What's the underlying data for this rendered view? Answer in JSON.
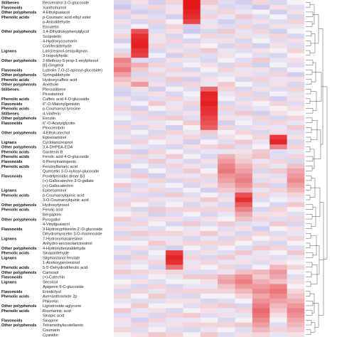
{
  "chart_data": {
    "type": "heatmap",
    "scale": {
      "low": "#5b5bd6",
      "mid": "#f4f0f6",
      "high": "#e31a1c"
    },
    "n_columns": 11,
    "rows": [
      {
        "group": "Stilbenes",
        "name": "Resveratrol 3-O-glucoside",
        "v": [
          -0.3,
          0.1,
          -0.4,
          0.2,
          3.0,
          0.3,
          -0.2,
          -0.4,
          0.2,
          -0.3,
          0.0
        ]
      },
      {
        "group": "Flavonoids",
        "name": "Xanthohumol",
        "v": [
          -0.5,
          -0.2,
          0.2,
          -0.1,
          3.0,
          0.1,
          -0.3,
          -0.2,
          -0.5,
          0.1,
          -0.2
        ]
      },
      {
        "group": "Other polyphenols",
        "name": "4-Ethylguaiacol",
        "v": [
          0.2,
          -0.4,
          -0.3,
          0.1,
          2.8,
          -0.2,
          0.2,
          -0.1,
          0.0,
          -0.4,
          0.1
        ]
      },
      {
        "group": "Phenolic acids",
        "name": "p-Coumaric acid ethyl ester",
        "v": [
          -0.3,
          0.1,
          -0.2,
          -0.4,
          2.6,
          0.2,
          -0.1,
          0.3,
          -0.2,
          0.0,
          -0.3
        ]
      },
      {
        "group": "",
        "name": "p-Anisaldehyde",
        "v": [
          0.1,
          -0.3,
          0.2,
          0.0,
          2.2,
          -0.1,
          -0.4,
          -0.2,
          0.1,
          -0.2,
          0.2
        ]
      },
      {
        "group": "",
        "name": "Esculetin",
        "v": [
          -0.2,
          0.0,
          -0.3,
          0.2,
          -0.4,
          0.1,
          -0.2,
          0.2,
          -0.3,
          0.1,
          -0.1
        ]
      },
      {
        "group": "Other polyphenols",
        "name": "3,4-Dihydroxyphenylglycol",
        "v": [
          -0.1,
          2.0,
          -0.2,
          0.1,
          -0.5,
          -0.3,
          0.3,
          -0.1,
          0.2,
          -0.4,
          0.0
        ]
      },
      {
        "group": "",
        "name": "Scopoletin",
        "v": [
          0.2,
          2.6,
          0.1,
          -0.3,
          0.0,
          0.2,
          -0.2,
          0.1,
          -0.1,
          0.2,
          -0.3
        ]
      },
      {
        "group": "",
        "name": "4-Hydroxycoumarin",
        "v": [
          -0.4,
          2.8,
          -0.1,
          0.2,
          -0.3,
          -0.1,
          0.1,
          -0.3,
          0.0,
          -0.2,
          0.1
        ]
      },
      {
        "group": "",
        "name": "Coniferaldehyde",
        "v": [
          0.0,
          2.9,
          0.2,
          -0.2,
          0.1,
          0.0,
          -0.3,
          0.2,
          -0.4,
          0.1,
          -0.2
        ]
      },
      {
        "group": "Lignans",
        "name": "Lariciresinol-sesquilignan",
        "v": [
          -0.2,
          2.5,
          -0.3,
          0.1,
          -0.2,
          0.3,
          -0.1,
          -0.2,
          0.1,
          0.0,
          0.2
        ]
      },
      {
        "group": "",
        "name": "3-Isopolyhydic",
        "v": [
          0.3,
          2.3,
          0.0,
          -0.4,
          0.2,
          -0.2,
          0.1,
          0.0,
          -0.2,
          -0.3,
          0.0
        ]
      },
      {
        "group": "Other polyphenols",
        "name": "2-Methoxy-5-prop-1-enylphenol",
        "v": [
          1.2,
          -0.2,
          -0.3,
          0.1,
          -0.1,
          -0.3,
          0.0,
          -0.2,
          0.3,
          -0.1,
          0.1
        ]
      },
      {
        "group": "",
        "name": "[6]-Gingerol",
        "v": [
          1.0,
          0.6,
          0.2,
          -0.2,
          0.0,
          0.1,
          -0.3,
          0.2,
          -0.4,
          0.0,
          -0.2
        ]
      },
      {
        "group": "Flavonoids",
        "name": "Luteolin 7-O-(2-apiosyl-glucoside)",
        "v": [
          1.4,
          0.3,
          -0.1,
          0.2,
          -0.3,
          0.0,
          0.2,
          -0.1,
          0.1,
          -0.3,
          0.0
        ]
      },
      {
        "group": "Other polyphenols",
        "name": "Syringaldehyde",
        "v": [
          0.8,
          -0.3,
          0.2,
          -0.1,
          0.1,
          -0.2,
          -0.1,
          0.1,
          -0.2,
          0.2,
          -0.4
        ]
      },
      {
        "group": "Phenolic acids",
        "name": "Hydroxycaffeic acid",
        "v": [
          0.4,
          0.2,
          -0.2,
          0.3,
          -0.4,
          0.1,
          0.0,
          -0.3,
          0.2,
          -0.1,
          0.1
        ]
      },
      {
        "group": "Other polyphenols",
        "name": "Anethole",
        "v": [
          0.2,
          0.9,
          0.1,
          -0.3,
          0.2,
          -0.1,
          0.3,
          0.0,
          -0.2,
          0.1,
          -0.3
        ]
      },
      {
        "group": "Stilbenes",
        "name": "Pterostilbene",
        "v": [
          -0.3,
          0.1,
          -0.4,
          0.0,
          -0.2,
          1.6,
          0.2,
          -0.3,
          0.1,
          -0.2,
          0.2
        ]
      },
      {
        "group": "",
        "name": "Piceatannol",
        "v": [
          -0.4,
          -0.2,
          0.1,
          -0.3,
          0.0,
          2.8,
          -0.1,
          0.2,
          -0.3,
          0.0,
          -0.1
        ]
      },
      {
        "group": "Phenolic acids",
        "name": "Caffeic acid 4-O-glucoside",
        "v": [
          0.1,
          -0.3,
          -0.2,
          0.2,
          -0.1,
          2.7,
          0.0,
          -0.2,
          0.2,
          -0.4,
          0.1
        ]
      },
      {
        "group": "Flavonoids",
        "name": "6''-O-Malonylgenistin",
        "v": [
          -0.2,
          0.0,
          0.3,
          -0.1,
          0.2,
          2.9,
          -0.3,
          0.1,
          0.0,
          0.2,
          -0.2
        ]
      },
      {
        "group": "Phenolic acids",
        "name": "p-Coumaroyl tyrosine",
        "v": [
          0.2,
          -0.4,
          0.0,
          0.1,
          -0.3,
          2.6,
          0.2,
          -0.2,
          -0.1,
          0.0,
          0.1
        ]
      },
      {
        "group": "Stilbenes",
        "name": "d-Viniferin",
        "v": [
          -0.1,
          0.2,
          -0.3,
          -0.2,
          0.1,
          2.5,
          -0.2,
          0.3,
          -0.4,
          0.1,
          0.0
        ]
      },
      {
        "group": "Other polyphenols",
        "name": "Esculin",
        "v": [
          0.0,
          -0.2,
          0.2,
          0.3,
          -0.2,
          2.2,
          0.1,
          -0.1,
          0.2,
          -0.3,
          0.2
        ]
      },
      {
        "group": "Flavonoids",
        "name": "6''-O-Acetylglycitin",
        "v": [
          -0.3,
          0.1,
          -0.1,
          0.0,
          0.3,
          2.0,
          -0.4,
          0.0,
          -0.2,
          0.2,
          -0.1
        ]
      },
      {
        "group": "",
        "name": "Pinocembrin",
        "v": [
          0.2,
          -0.3,
          0.1,
          -0.4,
          0.0,
          1.8,
          0.2,
          -0.2,
          0.1,
          -0.1,
          0.3
        ]
      },
      {
        "group": "Other polyphenols",
        "name": "4-Ethylcatechol",
        "v": [
          -0.2,
          0.0,
          -0.3,
          0.2,
          -0.1,
          0.3,
          0.0,
          0.2,
          -0.3,
          0.1,
          -0.2
        ]
      },
      {
        "group": "",
        "name": "Episesaminol",
        "v": [
          0.1,
          -0.2,
          0.2,
          -0.1,
          0.2,
          -0.3,
          0.1,
          0.0,
          0.2,
          2.4,
          0.1
        ]
      },
      {
        "group": "Lignans",
        "name": "Cyclolariciresinol",
        "v": [
          -0.3,
          0.2,
          0.0,
          0.1,
          -0.4,
          0.0,
          -0.2,
          0.3,
          -0.1,
          2.8,
          -0.3
        ]
      },
      {
        "group": "Other polyphenols",
        "name": "3,4-DHPEA-EDA",
        "v": [
          0.0,
          -0.1,
          -0.2,
          -0.3,
          0.1,
          0.2,
          0.3,
          -0.2,
          0.0,
          1.2,
          0.2
        ]
      },
      {
        "group": "Phenolic acids",
        "name": "Gardenin B",
        "v": [
          0.3,
          -0.4,
          0.2,
          0.0,
          -0.2,
          -0.1,
          -0.1,
          0.1,
          0.3,
          -0.2,
          -0.1
        ]
      },
      {
        "group": "Phenolic acids",
        "name": "Ferulic acid 4-O-glucoside",
        "v": [
          -0.1,
          0.2,
          -0.1,
          0.3,
          0.0,
          -0.3,
          0.6,
          0.2,
          0.4,
          -0.2,
          0.2
        ]
      },
      {
        "group": "Flavonoids",
        "name": "6-Prenylnaringenin",
        "v": [
          0.2,
          -0.2,
          0.3,
          -0.1,
          -0.3,
          0.1,
          0.9,
          0.3,
          -0.1,
          0.2,
          -0.3
        ]
      },
      {
        "group": "Phenolic acids",
        "name": "Feruloyltartaric acid",
        "v": [
          -0.4,
          0.0,
          -0.2,
          0.2,
          0.1,
          -0.2,
          1.2,
          0.6,
          0.2,
          -0.1,
          0.4
        ]
      },
      {
        "group": "",
        "name": "Quercetin 3-O-xylosyl-glucoside",
        "v": [
          0.1,
          -0.3,
          0.0,
          -0.2,
          0.3,
          0.0,
          1.4,
          0.8,
          -0.3,
          0.3,
          0.7
        ]
      },
      {
        "group": "Flavonoids",
        "name": "Prodelphinidin dimer B3",
        "v": [
          -0.2,
          0.3,
          -0.4,
          0.1,
          -0.1,
          0.2,
          1.0,
          1.1,
          0.1,
          -0.2,
          0.9
        ]
      },
      {
        "group": "",
        "name": "(+)-Gallocatechin 3-O-gallate",
        "v": [
          0.0,
          -0.1,
          0.2,
          -0.3,
          0.2,
          -0.2,
          0.8,
          1.3,
          -0.2,
          0.1,
          1.1
        ]
      },
      {
        "group": "",
        "name": "(+)-Gallocatechin",
        "v": [
          0.3,
          -0.2,
          -0.1,
          0.0,
          -0.3,
          0.1,
          0.5,
          1.0,
          0.3,
          -0.3,
          0.8
        ]
      },
      {
        "group": "Lignans",
        "name": "Episesaminol",
        "v": [
          -0.3,
          0.1,
          0.2,
          -0.2,
          0.0,
          -0.4,
          0.3,
          0.6,
          -0.1,
          0.2,
          0.5
        ]
      },
      {
        "group": "Phenolic acids",
        "name": "p-Coumaroylquinic acid",
        "v": [
          0.1,
          -0.2,
          -0.3,
          0.3,
          -0.2,
          0.0,
          -0.2,
          2.0,
          0.2,
          -0.1,
          0.2
        ]
      },
      {
        "group": "",
        "name": "3-O-Coumaroylquinic acid",
        "v": [
          -0.2,
          0.2,
          0.1,
          -0.1,
          0.1,
          0.3,
          0.1,
          2.6,
          -0.2,
          0.0,
          -0.1
        ]
      },
      {
        "group": "Other polyphenols",
        "name": "Hydroxytyrosol",
        "v": [
          0.2,
          0.0,
          -0.2,
          0.0,
          -0.3,
          -0.1,
          -0.3,
          1.8,
          0.0,
          -0.3,
          0.3
        ]
      },
      {
        "group": "Phenolic acids",
        "name": "Ferulic acid",
        "v": [
          -0.1,
          -0.3,
          0.3,
          0.2,
          0.2,
          0.2,
          0.2,
          1.2,
          -0.3,
          0.2,
          0.0
        ]
      },
      {
        "group": "",
        "name": "Bergapten",
        "v": [
          0.0,
          0.1,
          -0.4,
          -0.2,
          0.0,
          -0.3,
          -0.1,
          0.7,
          0.1,
          0.1,
          -0.2
        ]
      },
      {
        "group": "Other polyphenols",
        "name": "Pyrogallol",
        "v": [
          0.3,
          -0.2,
          0.1,
          0.1,
          -0.2,
          0.1,
          0.0,
          0.4,
          0.2,
          -0.2,
          0.2
        ]
      },
      {
        "group": "",
        "name": "4-Vinylguaiacol",
        "v": [
          -0.2,
          0.2,
          0.0,
          -0.3,
          0.3,
          -0.2,
          0.3,
          -0.2,
          -0.1,
          0.3,
          -0.3
        ]
      },
      {
        "group": "Flavonoids",
        "name": "3-Hydroxyphloretin 2'-O-glucoside",
        "v": [
          0.1,
          -0.1,
          -0.2,
          0.0,
          -0.1,
          0.0,
          -0.2,
          0.1,
          -0.4,
          0.0,
          0.1
        ]
      },
      {
        "group": "",
        "name": "Dihydromyricetin 3-O-rhamnoside",
        "v": [
          -0.3,
          0.3,
          0.2,
          0.2,
          0.1,
          0.3,
          0.1,
          -0.3,
          0.2,
          -0.2,
          -0.1
        ]
      },
      {
        "group": "Lignans",
        "name": "7-Hydroxymatairesinol",
        "v": [
          0.2,
          -0.2,
          -0.1,
          -0.1,
          -0.3,
          -0.1,
          -0.3,
          0.2,
          0.0,
          0.1,
          0.2
        ]
      },
      {
        "group": "",
        "name": "Anhydro-secoisolariciresinol",
        "v": [
          0.0,
          0.0,
          0.3,
          0.1,
          0.2,
          0.2,
          0.2,
          0.0,
          -0.2,
          -0.3,
          0.0
        ]
      },
      {
        "group": "Other polyphenols",
        "name": "4-Hydroxybenzaldehyde",
        "v": [
          -0.2,
          0.1,
          -0.2,
          -0.4,
          0.0,
          -0.2,
          0.0,
          -0.2,
          0.3,
          0.2,
          -0.2
        ]
      },
      {
        "group": "Phenolic acids",
        "name": "Sinapaldehyde",
        "v": [
          0.1,
          -0.3,
          0.0,
          2.4,
          -0.2,
          0.1,
          -0.2,
          0.3,
          -0.1,
          0.0,
          0.3
        ]
      },
      {
        "group": "Lignans",
        "name": "Stigmastanol ferulate",
        "v": [
          -0.4,
          0.2,
          -0.1,
          2.8,
          0.2,
          -0.3,
          0.3,
          -0.1,
          0.1,
          -0.2,
          -0.1
        ]
      },
      {
        "group": "",
        "name": "1-Acetoxypinoresinol",
        "v": [
          0.2,
          -0.1,
          0.2,
          2.6,
          -0.1,
          0.2,
          -0.1,
          0.1,
          -0.2,
          0.1,
          0.0
        ]
      },
      {
        "group": "Phenolic acids",
        "name": "5-5'-Dehydrodiferulic acid",
        "v": [
          -0.1,
          0.0,
          -0.3,
          1.5,
          0.1,
          0.0,
          0.2,
          -0.3,
          0.0,
          0.5,
          0.2
        ]
      },
      {
        "group": "Other polyphenols",
        "name": "Carnosol",
        "v": [
          0.3,
          0.2,
          0.1,
          0.2,
          -0.2,
          -0.2,
          -0.1,
          0.4,
          0.5,
          0.9,
          0.0
        ]
      },
      {
        "group": "Flavonoids",
        "name": "(+)-Catechin",
        "v": [
          -0.2,
          -0.2,
          0.0,
          -0.1,
          0.3,
          0.3,
          0.6,
          1.0,
          0.3,
          0.7,
          -0.2
        ]
      },
      {
        "group": "Lignans",
        "name": "Secoisol",
        "v": [
          0.0,
          0.1,
          -0.2,
          0.0,
          0.0,
          0.1,
          0.8,
          1.3,
          0.6,
          0.4,
          0.1
        ]
      },
      {
        "group": "",
        "name": "Apigenin 6-C-glucoside",
        "v": [
          0.1,
          -0.3,
          0.2,
          -0.3,
          -0.1,
          -0.1,
          0.4,
          0.9,
          0.9,
          1.2,
          0.0
        ]
      },
      {
        "group": "Flavonoids",
        "name": "Eriodictyol",
        "v": [
          -0.3,
          0.2,
          -0.1,
          0.2,
          0.2,
          0.2,
          0.2,
          0.5,
          1.1,
          1.4,
          0.2
        ]
      },
      {
        "group": "Phenolic acids",
        "name": "Avenanthramide 2p",
        "v": [
          0.2,
          0.0,
          0.3,
          -0.2,
          -0.3,
          0.0,
          0.0,
          0.2,
          0.7,
          1.1,
          0.4
        ]
      },
      {
        "group": "",
        "name": "Phloretin",
        "v": [
          -0.1,
          -0.2,
          -0.2,
          0.1,
          0.1,
          -0.3,
          -0.2,
          0.0,
          1.0,
          0.8,
          0.6
        ]
      },
      {
        "group": "Other polyphenols",
        "name": "Lignstroside-aglycone",
        "v": [
          0.0,
          0.3,
          0.0,
          0.0,
          -0.2,
          0.2,
          0.3,
          -0.3,
          1.3,
          0.5,
          0.9
        ]
      },
      {
        "group": "Phenolic acids",
        "name": "Rosmarinic acid",
        "v": [
          0.3,
          -0.1,
          0.1,
          -0.3,
          0.0,
          0.1,
          -0.1,
          0.2,
          1.6,
          0.3,
          1.2
        ]
      },
      {
        "group": "",
        "name": "Sinapic acid",
        "v": [
          -0.2,
          0.1,
          -0.3,
          0.2,
          0.3,
          -0.2,
          0.1,
          -0.1,
          1.4,
          0.1,
          1.0
        ]
      },
      {
        "group": "Flavonoids",
        "name": "Sinapine",
        "v": [
          0.1,
          -0.4,
          0.2,
          -0.1,
          -0.1,
          0.0,
          -0.3,
          0.0,
          1.1,
          0.0,
          0.7
        ]
      },
      {
        "group": "Other polyphenols",
        "name": "Tetramethylscutellarein",
        "v": [
          -0.1,
          0.2,
          -0.1,
          0.1,
          0.2,
          0.2,
          0.2,
          0.3,
          0.8,
          -0.2,
          0.5
        ]
      },
      {
        "group": "",
        "name": "Coumarin",
        "v": [
          0.2,
          -0.2,
          0.0,
          -0.2,
          -0.3,
          -0.1,
          0.0,
          -0.2,
          0.5,
          0.2,
          0.3
        ]
      },
      {
        "group": "",
        "name": "Cyanidin",
        "v": [
          0.0,
          0.1,
          0.3,
          0.2,
          0.0,
          0.3,
          -0.2,
          0.1,
          0.2,
          -0.1,
          0.1
        ]
      }
    ]
  }
}
